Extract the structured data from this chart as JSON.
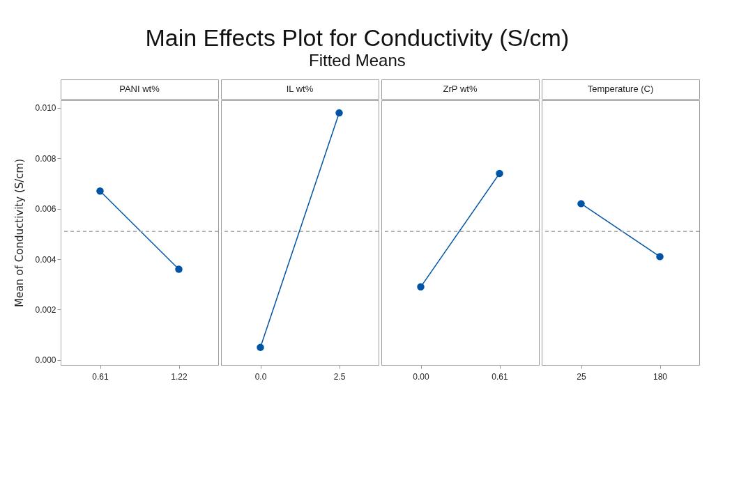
{
  "chart_data": {
    "type": "line",
    "title": "Main Effects Plot for Conductivity (S/cm)",
    "subtitle": "Fitted Means",
    "ylabel": "Mean of Conductivity (S/cm)",
    "categories": [
      "0.61",
      "1.22",
      "0.0",
      "2.5",
      "0.00",
      "0.61",
      "25",
      "180"
    ],
    "series": [
      {
        "color": "#0054a6",
        "values": [
          0.0067,
          0.0036,
          null,
          null,
          null,
          null,
          null,
          null
        ]
      },
      {
        "color": "#0054a6",
        "values": [
          null,
          null,
          0.0005,
          0.0098,
          null,
          null,
          null,
          null
        ]
      },
      {
        "color": "#0054a6",
        "values": [
          null,
          null,
          null,
          null,
          0.0029,
          0.0074,
          null,
          null
        ]
      },
      {
        "color": "#0054a6",
        "values": [
          null,
          null,
          null,
          null,
          null,
          null,
          0.0062,
          0.0041
        ]
      }
    ],
    "annotations": [
      "PANI wt%",
      "IL wt%",
      "ZrP wt%",
      "Temperature (C)"
    ],
    "ylim": [
      -0.0002,
      0.0103
    ],
    "yticks": [
      {
        "value": 0,
        "label": "0.000"
      },
      0.002,
      0.004,
      0.006,
      0.008,
      {
        "value": 0.01,
        "label": "0.010"
      }
    ],
    "ref_lines": [
      {
        "axis": "y",
        "value": 0.0051,
        "color": "#aaaaaa",
        "line_style": "dashed"
      }
    ],
    "marker": "circle"
  }
}
